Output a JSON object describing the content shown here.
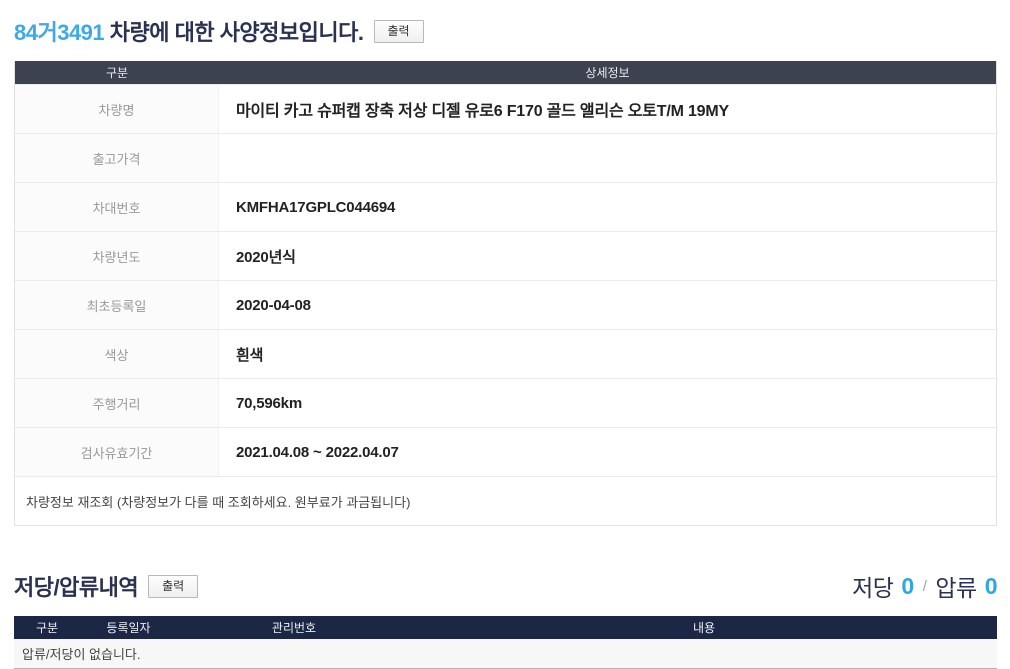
{
  "spec": {
    "plate_number": "84거3491",
    "title_rest": " 차량에 대한 사양정보입니다.",
    "print_button": "출력",
    "table": {
      "col1_header": "구분",
      "col2_header": "상세정보",
      "rows": [
        {
          "label": "차량명",
          "value": "마이티 카고 슈퍼캡 장축 저상 디젤 유로6 F170 골드 앨리슨 오토T/M 19MY"
        },
        {
          "label": "출고가격",
          "value": ""
        },
        {
          "label": "차대번호",
          "value": "KMFHA17GPLC044694"
        },
        {
          "label": "차량년도",
          "value": "2020년식"
        },
        {
          "label": "최초등록일",
          "value": "2020-04-08"
        },
        {
          "label": "색상",
          "value": "흰색"
        },
        {
          "label": "주행거리",
          "value": "70,596km"
        },
        {
          "label": "검사유효기간",
          "value": "2021.04.08 ~ 2022.04.07"
        }
      ],
      "footer_note": "차량정보 재조회 (차량정보가 다를 때 조회하세요. 원부료가 과금됩니다)"
    }
  },
  "lien": {
    "title": "저당/압류내역",
    "print_button": "출력",
    "summary": {
      "mortgage_label": "저당",
      "mortgage_count": "0",
      "separator": "/",
      "seizure_label": "압류",
      "seizure_count": "0"
    },
    "table": {
      "col_headers": [
        "구분",
        "등록일자",
        "관리번호",
        "내용"
      ],
      "empty_message": "압류/저당이 없습니다."
    }
  },
  "colors": {
    "accent_blue": "#3fa9e6",
    "count_blue": "#2ea7e6",
    "title_navy": "#2b3150",
    "spec_header_bg": "#3d4250",
    "lien_header_bg": "#1c2746"
  }
}
